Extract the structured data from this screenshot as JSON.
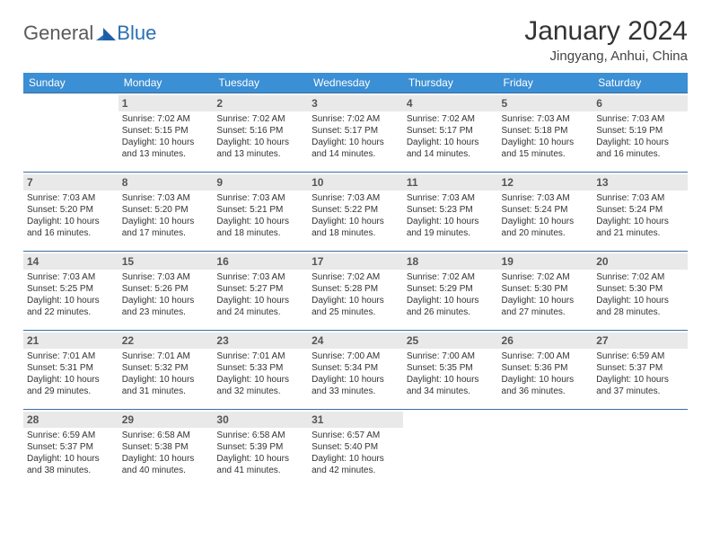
{
  "logo": {
    "word1": "General",
    "word2": "Blue",
    "color1": "#5a5a5a",
    "color2": "#2b6fb3",
    "mark_color": "#1d5fa6"
  },
  "header": {
    "title": "January 2024",
    "location": "Jingyang, Anhui, China"
  },
  "style": {
    "header_bg": "#3b8fd4",
    "header_fg": "#ffffff",
    "row_border": "#3b6ea3",
    "daynum_bg": "#e9e9e9",
    "daynum_fg": "#555555",
    "info_fg": "#333333",
    "info_fontsize": 10,
    "daynum_fontsize": 12,
    "dow_fontsize": 12,
    "title_fontsize": 30,
    "location_fontsize": 15
  },
  "days_of_week": [
    "Sunday",
    "Monday",
    "Tuesday",
    "Wednesday",
    "Thursday",
    "Friday",
    "Saturday"
  ],
  "weeks": [
    [
      null,
      {
        "n": "1",
        "sr": "Sunrise: 7:02 AM",
        "ss": "Sunset: 5:15 PM",
        "dl": "Daylight: 10 hours and 13 minutes."
      },
      {
        "n": "2",
        "sr": "Sunrise: 7:02 AM",
        "ss": "Sunset: 5:16 PM",
        "dl": "Daylight: 10 hours and 13 minutes."
      },
      {
        "n": "3",
        "sr": "Sunrise: 7:02 AM",
        "ss": "Sunset: 5:17 PM",
        "dl": "Daylight: 10 hours and 14 minutes."
      },
      {
        "n": "4",
        "sr": "Sunrise: 7:02 AM",
        "ss": "Sunset: 5:17 PM",
        "dl": "Daylight: 10 hours and 14 minutes."
      },
      {
        "n": "5",
        "sr": "Sunrise: 7:03 AM",
        "ss": "Sunset: 5:18 PM",
        "dl": "Daylight: 10 hours and 15 minutes."
      },
      {
        "n": "6",
        "sr": "Sunrise: 7:03 AM",
        "ss": "Sunset: 5:19 PM",
        "dl": "Daylight: 10 hours and 16 minutes."
      }
    ],
    [
      {
        "n": "7",
        "sr": "Sunrise: 7:03 AM",
        "ss": "Sunset: 5:20 PM",
        "dl": "Daylight: 10 hours and 16 minutes."
      },
      {
        "n": "8",
        "sr": "Sunrise: 7:03 AM",
        "ss": "Sunset: 5:20 PM",
        "dl": "Daylight: 10 hours and 17 minutes."
      },
      {
        "n": "9",
        "sr": "Sunrise: 7:03 AM",
        "ss": "Sunset: 5:21 PM",
        "dl": "Daylight: 10 hours and 18 minutes."
      },
      {
        "n": "10",
        "sr": "Sunrise: 7:03 AM",
        "ss": "Sunset: 5:22 PM",
        "dl": "Daylight: 10 hours and 18 minutes."
      },
      {
        "n": "11",
        "sr": "Sunrise: 7:03 AM",
        "ss": "Sunset: 5:23 PM",
        "dl": "Daylight: 10 hours and 19 minutes."
      },
      {
        "n": "12",
        "sr": "Sunrise: 7:03 AM",
        "ss": "Sunset: 5:24 PM",
        "dl": "Daylight: 10 hours and 20 minutes."
      },
      {
        "n": "13",
        "sr": "Sunrise: 7:03 AM",
        "ss": "Sunset: 5:24 PM",
        "dl": "Daylight: 10 hours and 21 minutes."
      }
    ],
    [
      {
        "n": "14",
        "sr": "Sunrise: 7:03 AM",
        "ss": "Sunset: 5:25 PM",
        "dl": "Daylight: 10 hours and 22 minutes."
      },
      {
        "n": "15",
        "sr": "Sunrise: 7:03 AM",
        "ss": "Sunset: 5:26 PM",
        "dl": "Daylight: 10 hours and 23 minutes."
      },
      {
        "n": "16",
        "sr": "Sunrise: 7:03 AM",
        "ss": "Sunset: 5:27 PM",
        "dl": "Daylight: 10 hours and 24 minutes."
      },
      {
        "n": "17",
        "sr": "Sunrise: 7:02 AM",
        "ss": "Sunset: 5:28 PM",
        "dl": "Daylight: 10 hours and 25 minutes."
      },
      {
        "n": "18",
        "sr": "Sunrise: 7:02 AM",
        "ss": "Sunset: 5:29 PM",
        "dl": "Daylight: 10 hours and 26 minutes."
      },
      {
        "n": "19",
        "sr": "Sunrise: 7:02 AM",
        "ss": "Sunset: 5:30 PM",
        "dl": "Daylight: 10 hours and 27 minutes."
      },
      {
        "n": "20",
        "sr": "Sunrise: 7:02 AM",
        "ss": "Sunset: 5:30 PM",
        "dl": "Daylight: 10 hours and 28 minutes."
      }
    ],
    [
      {
        "n": "21",
        "sr": "Sunrise: 7:01 AM",
        "ss": "Sunset: 5:31 PM",
        "dl": "Daylight: 10 hours and 29 minutes."
      },
      {
        "n": "22",
        "sr": "Sunrise: 7:01 AM",
        "ss": "Sunset: 5:32 PM",
        "dl": "Daylight: 10 hours and 31 minutes."
      },
      {
        "n": "23",
        "sr": "Sunrise: 7:01 AM",
        "ss": "Sunset: 5:33 PM",
        "dl": "Daylight: 10 hours and 32 minutes."
      },
      {
        "n": "24",
        "sr": "Sunrise: 7:00 AM",
        "ss": "Sunset: 5:34 PM",
        "dl": "Daylight: 10 hours and 33 minutes."
      },
      {
        "n": "25",
        "sr": "Sunrise: 7:00 AM",
        "ss": "Sunset: 5:35 PM",
        "dl": "Daylight: 10 hours and 34 minutes."
      },
      {
        "n": "26",
        "sr": "Sunrise: 7:00 AM",
        "ss": "Sunset: 5:36 PM",
        "dl": "Daylight: 10 hours and 36 minutes."
      },
      {
        "n": "27",
        "sr": "Sunrise: 6:59 AM",
        "ss": "Sunset: 5:37 PM",
        "dl": "Daylight: 10 hours and 37 minutes."
      }
    ],
    [
      {
        "n": "28",
        "sr": "Sunrise: 6:59 AM",
        "ss": "Sunset: 5:37 PM",
        "dl": "Daylight: 10 hours and 38 minutes."
      },
      {
        "n": "29",
        "sr": "Sunrise: 6:58 AM",
        "ss": "Sunset: 5:38 PM",
        "dl": "Daylight: 10 hours and 40 minutes."
      },
      {
        "n": "30",
        "sr": "Sunrise: 6:58 AM",
        "ss": "Sunset: 5:39 PM",
        "dl": "Daylight: 10 hours and 41 minutes."
      },
      {
        "n": "31",
        "sr": "Sunrise: 6:57 AM",
        "ss": "Sunset: 5:40 PM",
        "dl": "Daylight: 10 hours and 42 minutes."
      },
      null,
      null,
      null
    ]
  ]
}
